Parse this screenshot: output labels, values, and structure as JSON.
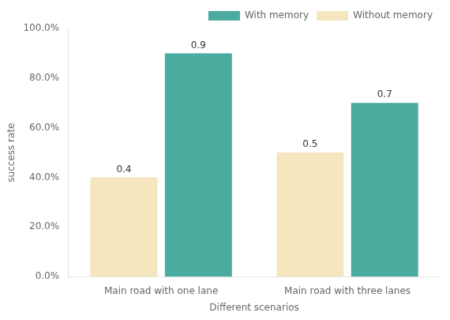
{
  "chart_data": {
    "type": "bar",
    "categories": [
      "Main road with one lane",
      "Main road with three lanes"
    ],
    "series": [
      {
        "name": "Without memory",
        "color": "#f5e6c0",
        "values": [
          0.4,
          0.5
        ]
      },
      {
        "name": "With memory",
        "color": "#4aab9e",
        "values": [
          0.9,
          0.7
        ]
      }
    ],
    "xlabel": "Different scenarios",
    "ylabel": "success rate",
    "ylim": [
      0.0,
      1.0
    ],
    "yticks": [
      {
        "value": 0.0,
        "label": "0.0%"
      },
      {
        "value": 0.2,
        "label": "20.0%"
      },
      {
        "value": 0.4,
        "label": "40.0%"
      },
      {
        "value": 0.6,
        "label": "60.0%"
      },
      {
        "value": 0.8,
        "label": "80.0%"
      },
      {
        "value": 1.0,
        "label": "100.0%"
      }
    ],
    "legend": "upper right",
    "data_labels": true,
    "grid": false
  }
}
